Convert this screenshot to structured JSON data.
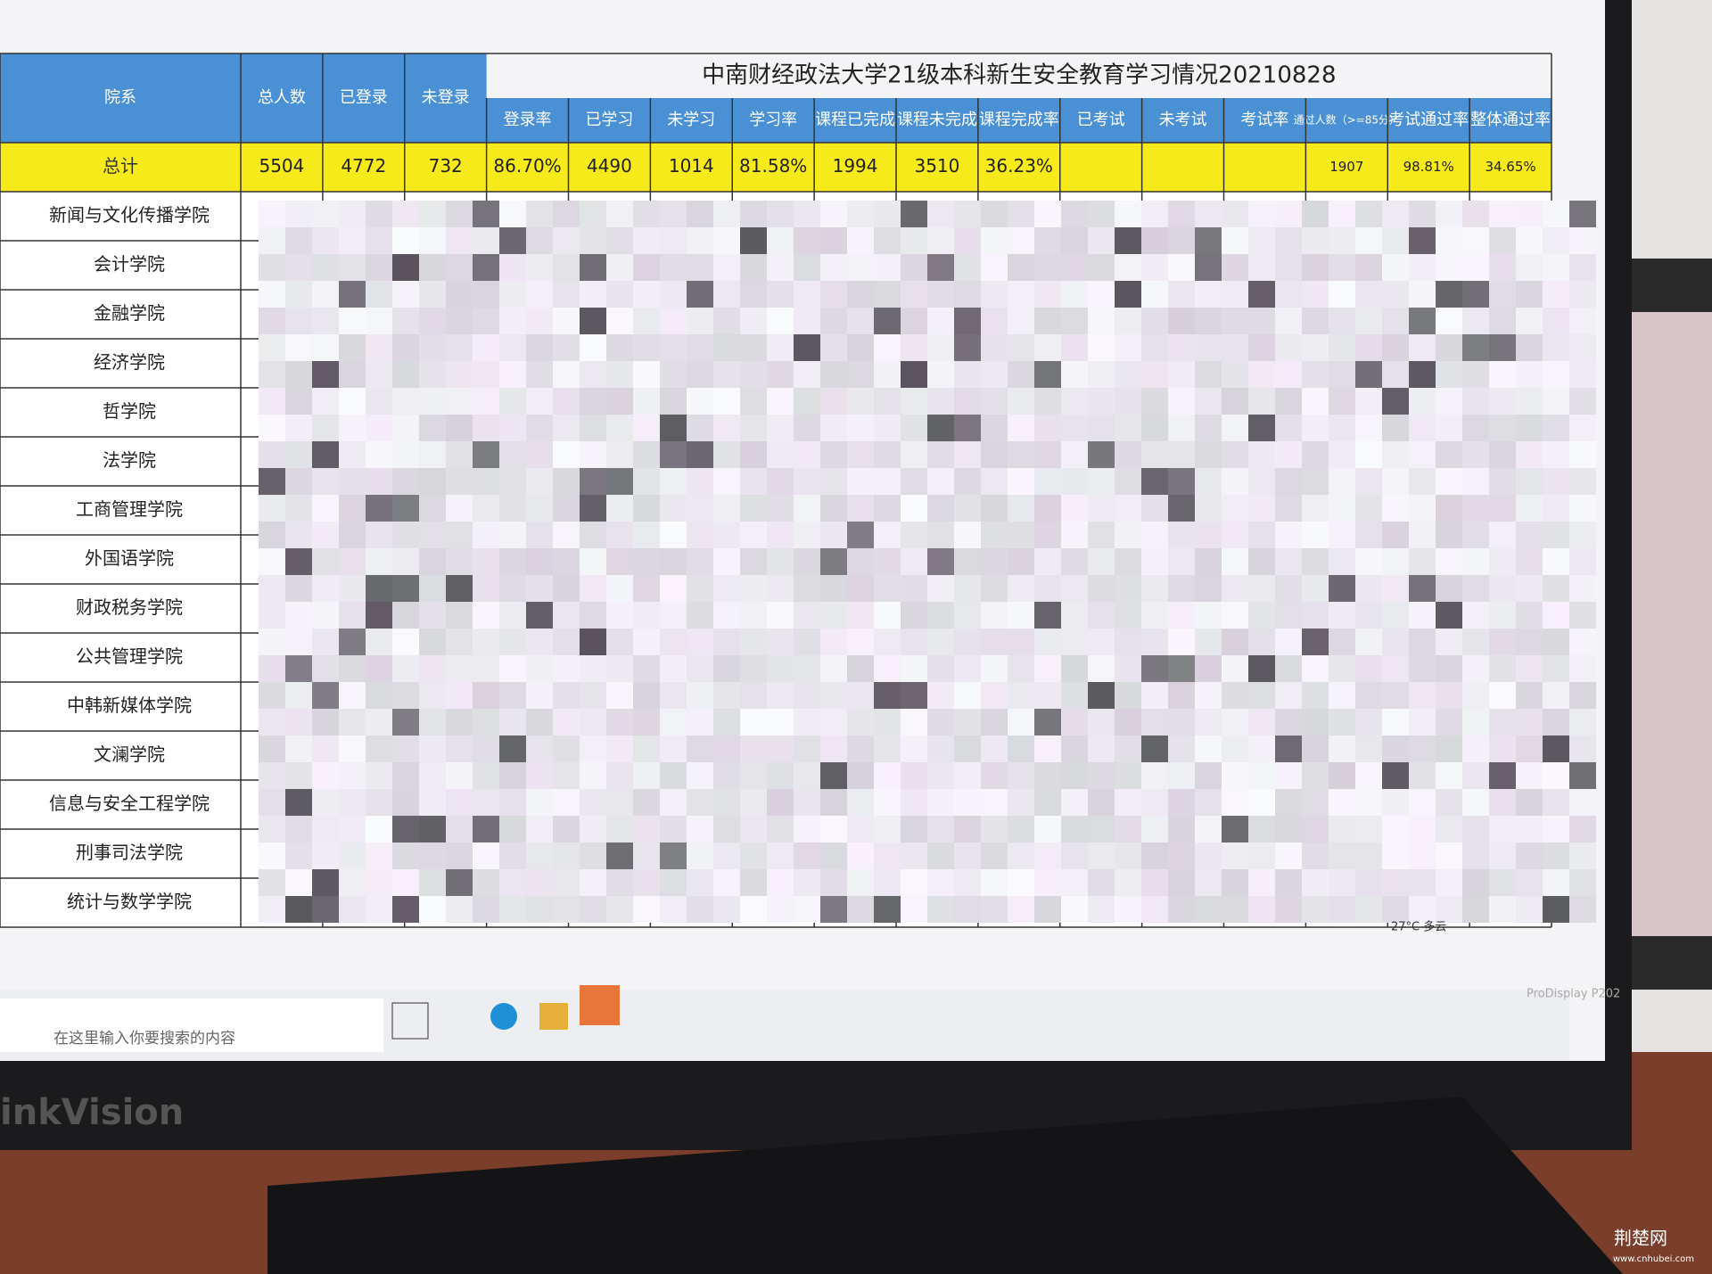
{
  "title": "中南财经政法大学21级本科新生安全教育学习情况20210828",
  "table": {
    "headers": [
      "院系",
      "总人数",
      "已登录",
      "未登录",
      "登录率",
      "已学习",
      "未学习",
      "学习率",
      "课程已完成",
      "课程未完成",
      "课程完成率",
      "已考试",
      "未考试",
      "考试率",
      "通过人数（>=85分）",
      "考试通过率",
      "整体通过率"
    ],
    "total": {
      "label": "总计",
      "values": [
        "5504",
        "4772",
        "732",
        "86.70%",
        "4490",
        "1014",
        "81.58%",
        "1994",
        "3510",
        "36.23%"
      ],
      "tail": [
        "1907",
        "98.81%",
        "34.65%"
      ]
    },
    "departments": [
      "新闻与文化传播学院",
      "会计学院",
      "金融学院",
      "经济学院",
      "哲学院",
      "法学院",
      "工商管理学院",
      "外国语学院",
      "财政税务学院",
      "公共管理学院",
      "中韩新媒体学院",
      "文澜学院",
      "信息与安全工程学院",
      "刑事司法学院",
      "统计与数学学院"
    ]
  },
  "taskbar": {
    "search": "在这里输入你要搜索的内容",
    "weather": "27°C 多云"
  },
  "monitor": {
    "brand": "inkVision",
    "model": "ProDisplay P202"
  },
  "watermark": {
    "name": "荆楚网",
    "url": "www.cnhubei.com"
  }
}
